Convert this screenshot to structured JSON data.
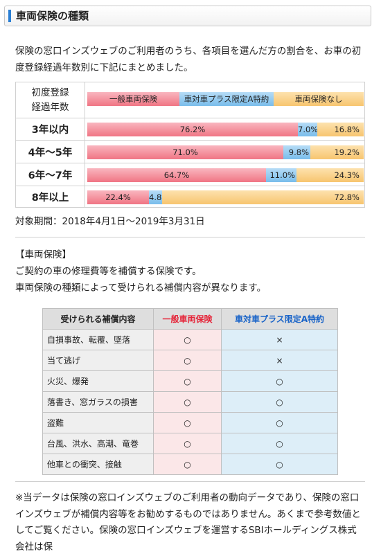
{
  "page_title": "車両保険の種類",
  "intro": "保険の窓口インズウェブのご利用者のうち、各項目を選んだ方の割合を、お車の初度登録経過年数別に下記にまとめました。",
  "chart_data": {
    "type": "bar",
    "header_label": "初度登録経過年数",
    "legend": [
      "一般車両保険",
      "車対車プラス限定A特約",
      "車両保険なし"
    ],
    "categories": [
      "3年以内",
      "4年～5年",
      "6年～7年",
      "8年以上"
    ],
    "series": [
      {
        "name": "一般車両保険",
        "values": [
          76.2,
          71.0,
          64.7,
          22.4
        ],
        "color": "#f07584"
      },
      {
        "name": "車対車プラス限定A特約",
        "values": [
          7.0,
          9.8,
          11.0,
          4.8
        ],
        "color": "#79bdeb"
      },
      {
        "name": "車両保険なし",
        "values": [
          16.8,
          19.2,
          24.3,
          72.8
        ],
        "color": "#f7c56f"
      }
    ],
    "value_labels": [
      [
        "76.2%",
        "7.0%",
        "16.8%"
      ],
      [
        "71.0%",
        "9.8%",
        "19.2%"
      ],
      [
        "64.7%",
        "11.0%",
        "24.3%"
      ],
      [
        "22.4%",
        "4.8%",
        "72.8%"
      ]
    ],
    "ylim": [
      0,
      100
    ]
  },
  "period": "対象期間：2018年4月1日～2019年3月31日",
  "section": {
    "heading": "【車両保険】",
    "line1": "ご契約の車の修理費等を補償する保険です。",
    "line2": "車両保険の種類によって受けられる補償内容が異なります。"
  },
  "coverage_table": {
    "headers": [
      "受けられる補償内容",
      "一般車両保険",
      "車対車プラス限定A特約"
    ],
    "rows": [
      [
        "自損事故、転覆、墜落",
        "○",
        "×"
      ],
      [
        "当て逃げ",
        "○",
        "×"
      ],
      [
        "火災、爆発",
        "○",
        "○"
      ],
      [
        "落書き、窓ガラスの損害",
        "○",
        "○"
      ],
      [
        "盗難",
        "○",
        "○"
      ],
      [
        "台風、洪水、高潮、竜巻",
        "○",
        "○"
      ],
      [
        "他車との衝突、接触",
        "○",
        "○"
      ]
    ]
  },
  "note": "※当データは保険の窓口インズウェブのご利用者の動向データであり、保険の窓口インズウェブが補償内容等をお勧めするものではありません。あくまで参考数値としてご覧ください。保険の窓口インズウェブを運営するSBIホールディングス株式会社は保"
}
